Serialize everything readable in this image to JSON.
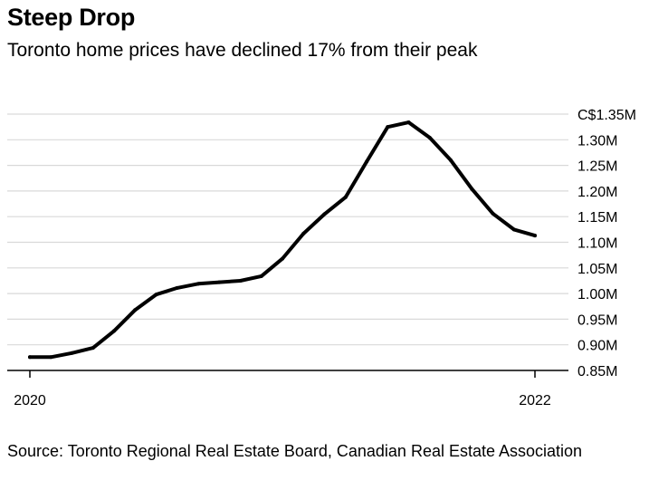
{
  "header": {
    "title": "Steep Drop",
    "subtitle": "Toronto home prices have declined 17% from their peak"
  },
  "footer": {
    "source": "Source: Toronto Regional Real Estate Board, Canadian Real Estate Association"
  },
  "colors": {
    "line": "#000000",
    "grid": "#d9d9d9",
    "axis": "#000000"
  },
  "chart_data": {
    "type": "line",
    "title": "Steep Drop",
    "subtitle": "Toronto home prices have declined 17% from their peak",
    "xlabel": "",
    "ylabel": "",
    "x": [
      "2020-01",
      "2020-02",
      "2020-03",
      "2020-04",
      "2020-05",
      "2020-06",
      "2020-07",
      "2020-08",
      "2020-09",
      "2020-10",
      "2020-11",
      "2020-12",
      "2021-01",
      "2021-02",
      "2021-03",
      "2021-04",
      "2021-05",
      "2021-06",
      "2021-07",
      "2021-08",
      "2021-09",
      "2021-10",
      "2021-11",
      "2021-12",
      "2022-01"
    ],
    "series": [
      {
        "values": [
          0.876,
          0.876,
          0.884,
          0.894,
          0.927,
          0.968,
          0.998,
          1.011,
          1.019,
          1.022,
          1.025,
          1.034,
          1.068,
          1.117,
          1.155,
          1.188,
          1.257,
          1.325,
          1.334,
          1.304,
          1.26,
          1.204,
          1.156,
          1.125,
          1.113
        ]
      }
    ],
    "ylim": [
      0.85,
      1.35
    ],
    "yticks": [
      0.85,
      0.9,
      0.95,
      1.0,
      1.05,
      1.1,
      1.15,
      1.2,
      1.25,
      1.3,
      1.35
    ],
    "ytick_labels": [
      "0.85M",
      "0.90M",
      "0.95M",
      "1.00M",
      "1.05M",
      "1.10M",
      "1.15M",
      "1.20M",
      "1.25M",
      "1.30M",
      "C$1.35M"
    ],
    "xticks": [
      "2020-01",
      "2022-01"
    ],
    "xtick_labels": [
      "2020",
      "2022"
    ],
    "grid": true,
    "yaxis_position": "right"
  }
}
